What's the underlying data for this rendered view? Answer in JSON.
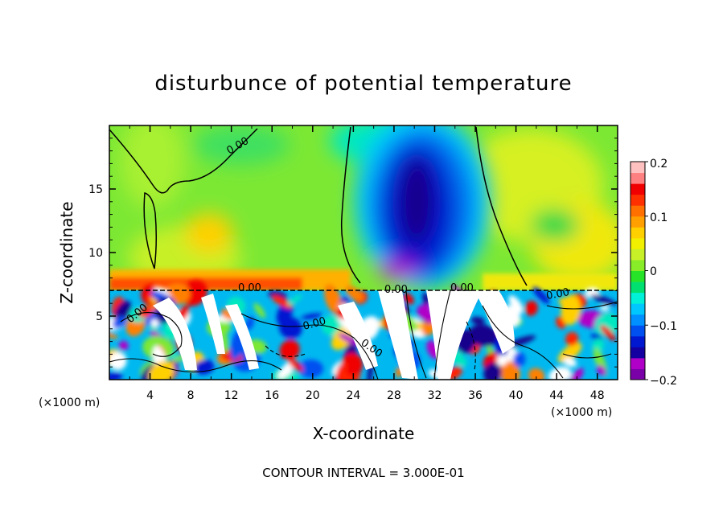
{
  "chart_data": {
    "type": "heatmap",
    "title": "disturbunce of potential temperature",
    "xlabel": "X-coordinate",
    "ylabel": "Z-coordinate",
    "x_unit": "(×1000 m)",
    "z_unit": "(×1000 m)",
    "xlim": [
      0,
      50
    ],
    "ylim": [
      0,
      20
    ],
    "x_ticks": [
      "4",
      "8",
      "12",
      "16",
      "20",
      "24",
      "28",
      "32",
      "36",
      "40",
      "44",
      "48"
    ],
    "y_ticks": [
      "5",
      "10",
      "15"
    ],
    "colorbar": {
      "range": [
        -0.2,
        0.2
      ],
      "labels": [
        "0.2",
        "0.1",
        "0",
        "−0.1",
        "−0.2"
      ],
      "colors": [
        "#7a00a8",
        "#b000c8",
        "#1400a0",
        "#0018d0",
        "#0050f0",
        "#0090ff",
        "#00c8ff",
        "#00f0d8",
        "#00e070",
        "#28e428",
        "#88ec28",
        "#c8f028",
        "#f0f000",
        "#ffd000",
        "#ffa000",
        "#ff7000",
        "#ff3000",
        "#f00000",
        "#ff8080",
        "#ffc0c0"
      ]
    },
    "contour_labels": [
      "0.00",
      "0.00",
      "0.00",
      "0.00",
      "0.00",
      "0.00",
      "0.00",
      "0.00",
      "0.00"
    ],
    "footer": "CONTOUR INTERVAL = 3.000E-01"
  }
}
